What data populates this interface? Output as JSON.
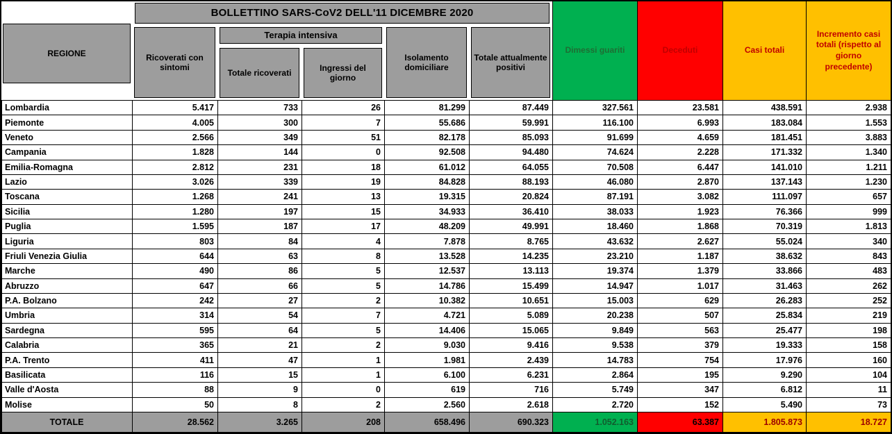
{
  "title": "BOLLETTINO SARS-CoV2 DELL'11 DICEMBRE 2020",
  "colors": {
    "header_gray": "#9d9d9d",
    "green": "#00b050",
    "red": "#ff0000",
    "orange": "#ffc000",
    "dimessi_text": "#1e6e34",
    "deceduti_text": "#c00000",
    "casi_text": "#c00000",
    "totale_dimessi_text": "#115c2e",
    "totale_casi_text": "#9c0000"
  },
  "header": {
    "regione": "REGIONE",
    "ricoverati": "Ricoverati con sintomi",
    "terapia_intensiva": "Terapia intensiva",
    "totale_ricoverati": "Totale ricoverati",
    "ingressi": "Ingressi del giorno",
    "isolamento": "Isolamento domiciliare",
    "totale_positivi": "Totale attualmente positivi",
    "dimessi": "Dimessi guariti",
    "deceduti": "Deceduti",
    "casi_totali": "Casi totali",
    "incremento": "Incremento casi totali (rispetto al giorno precedente)"
  },
  "rows": [
    [
      "Lombardia",
      "5.417",
      "733",
      "26",
      "81.299",
      "87.449",
      "327.561",
      "23.581",
      "438.591",
      "2.938"
    ],
    [
      "Piemonte",
      "4.005",
      "300",
      "7",
      "55.686",
      "59.991",
      "116.100",
      "6.993",
      "183.084",
      "1.553"
    ],
    [
      "Veneto",
      "2.566",
      "349",
      "51",
      "82.178",
      "85.093",
      "91.699",
      "4.659",
      "181.451",
      "3.883"
    ],
    [
      "Campania",
      "1.828",
      "144",
      "0",
      "92.508",
      "94.480",
      "74.624",
      "2.228",
      "171.332",
      "1.340"
    ],
    [
      "Emilia-Romagna",
      "2.812",
      "231",
      "18",
      "61.012",
      "64.055",
      "70.508",
      "6.447",
      "141.010",
      "1.211"
    ],
    [
      "Lazio",
      "3.026",
      "339",
      "19",
      "84.828",
      "88.193",
      "46.080",
      "2.870",
      "137.143",
      "1.230"
    ],
    [
      "Toscana",
      "1.268",
      "241",
      "13",
      "19.315",
      "20.824",
      "87.191",
      "3.082",
      "111.097",
      "657"
    ],
    [
      "Sicilia",
      "1.280",
      "197",
      "15",
      "34.933",
      "36.410",
      "38.033",
      "1.923",
      "76.366",
      "999"
    ],
    [
      "Puglia",
      "1.595",
      "187",
      "17",
      "48.209",
      "49.991",
      "18.460",
      "1.868",
      "70.319",
      "1.813"
    ],
    [
      "Liguria",
      "803",
      "84",
      "4",
      "7.878",
      "8.765",
      "43.632",
      "2.627",
      "55.024",
      "340"
    ],
    [
      "Friuli Venezia Giulia",
      "644",
      "63",
      "8",
      "13.528",
      "14.235",
      "23.210",
      "1.187",
      "38.632",
      "843"
    ],
    [
      "Marche",
      "490",
      "86",
      "5",
      "12.537",
      "13.113",
      "19.374",
      "1.379",
      "33.866",
      "483"
    ],
    [
      "Abruzzo",
      "647",
      "66",
      "5",
      "14.786",
      "15.499",
      "14.947",
      "1.017",
      "31.463",
      "262"
    ],
    [
      "P.A. Bolzano",
      "242",
      "27",
      "2",
      "10.382",
      "10.651",
      "15.003",
      "629",
      "26.283",
      "252"
    ],
    [
      "Umbria",
      "314",
      "54",
      "7",
      "4.721",
      "5.089",
      "20.238",
      "507",
      "25.834",
      "219"
    ],
    [
      "Sardegna",
      "595",
      "64",
      "5",
      "14.406",
      "15.065",
      "9.849",
      "563",
      "25.477",
      "198"
    ],
    [
      "Calabria",
      "365",
      "21",
      "2",
      "9.030",
      "9.416",
      "9.538",
      "379",
      "19.333",
      "158"
    ],
    [
      "P.A. Trento",
      "411",
      "47",
      "1",
      "1.981",
      "2.439",
      "14.783",
      "754",
      "17.976",
      "160"
    ],
    [
      "Basilicata",
      "116",
      "15",
      "1",
      "6.100",
      "6.231",
      "2.864",
      "195",
      "9.290",
      "104"
    ],
    [
      "Valle d'Aosta",
      "88",
      "9",
      "0",
      "619",
      "716",
      "5.749",
      "347",
      "6.812",
      "11"
    ],
    [
      "Molise",
      "50",
      "8",
      "2",
      "2.560",
      "2.618",
      "2.720",
      "152",
      "5.490",
      "73"
    ]
  ],
  "totale": [
    "TOTALE",
    "28.562",
    "3.265",
    "208",
    "658.496",
    "690.323",
    "1.052.163",
    "63.387",
    "1.805.873",
    "18.727"
  ]
}
